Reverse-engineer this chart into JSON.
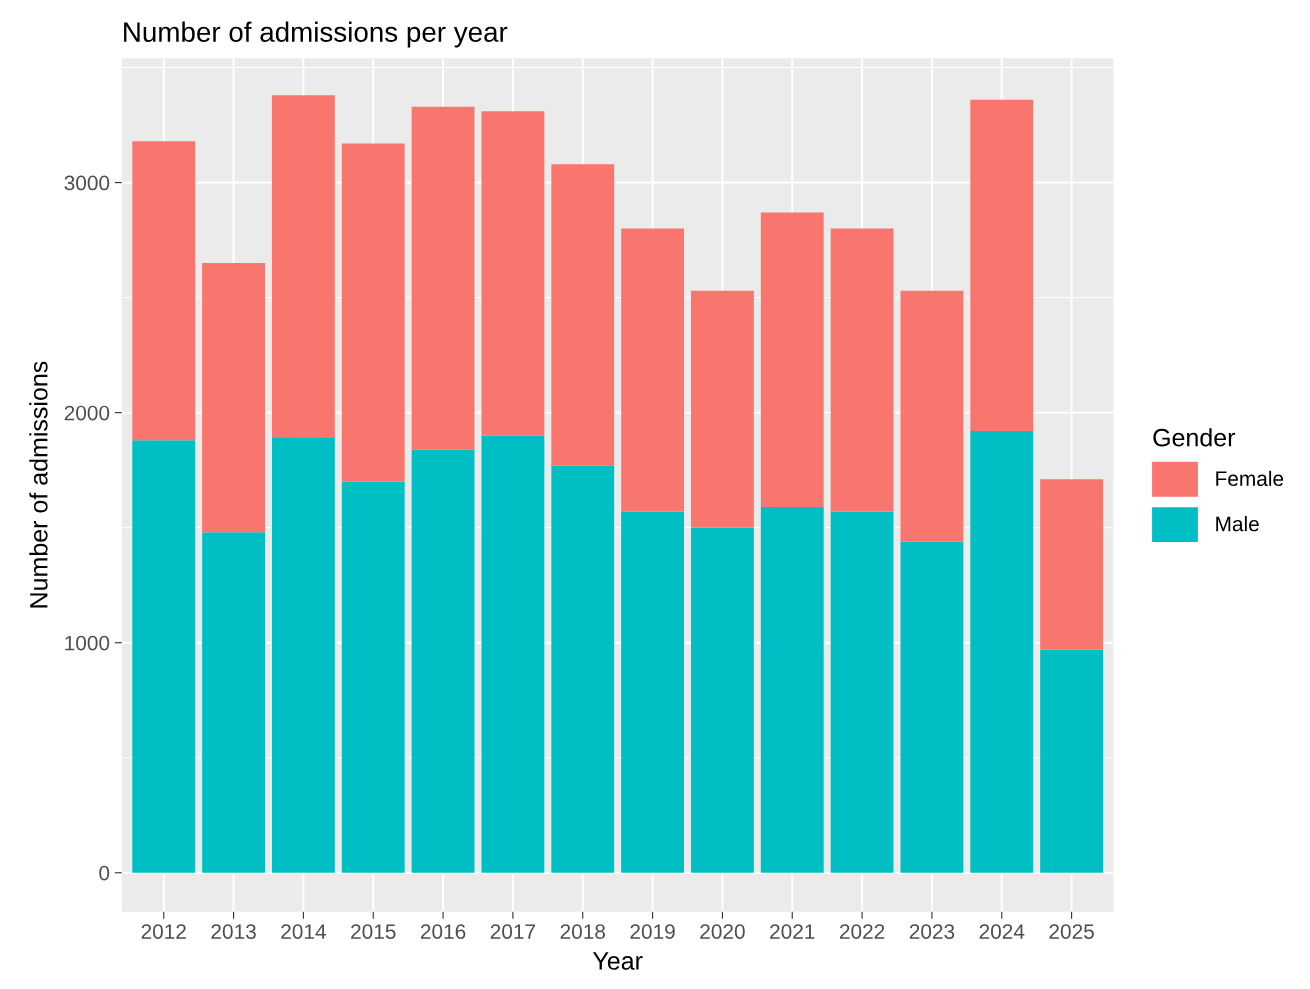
{
  "chart_data": {
    "type": "bar",
    "title": "Number of admissions per year",
    "xlabel": "Year",
    "ylabel": "Number of admissions",
    "legend_title": "Gender",
    "categories": [
      "2012",
      "2013",
      "2014",
      "2015",
      "2016",
      "2017",
      "2018",
      "2019",
      "2020",
      "2021",
      "2022",
      "2023",
      "2024",
      "2025"
    ],
    "series": [
      {
        "name": "Male",
        "color": "#00bfc4",
        "values": [
          1880,
          1480,
          1890,
          1700,
          1840,
          1900,
          1770,
          1570,
          1500,
          1590,
          1570,
          1440,
          1920,
          970
        ]
      },
      {
        "name": "Female",
        "color": "#f8766d",
        "values": [
          1300,
          1170,
          1490,
          1470,
          1490,
          1410,
          1310,
          1230,
          1030,
          1280,
          1230,
          1090,
          1440,
          740
        ]
      }
    ],
    "stacked": true,
    "ylim": [
      -170,
      3540
    ],
    "yticks": [
      0,
      1000,
      2000,
      3000
    ],
    "grid": true,
    "legend": "right"
  }
}
